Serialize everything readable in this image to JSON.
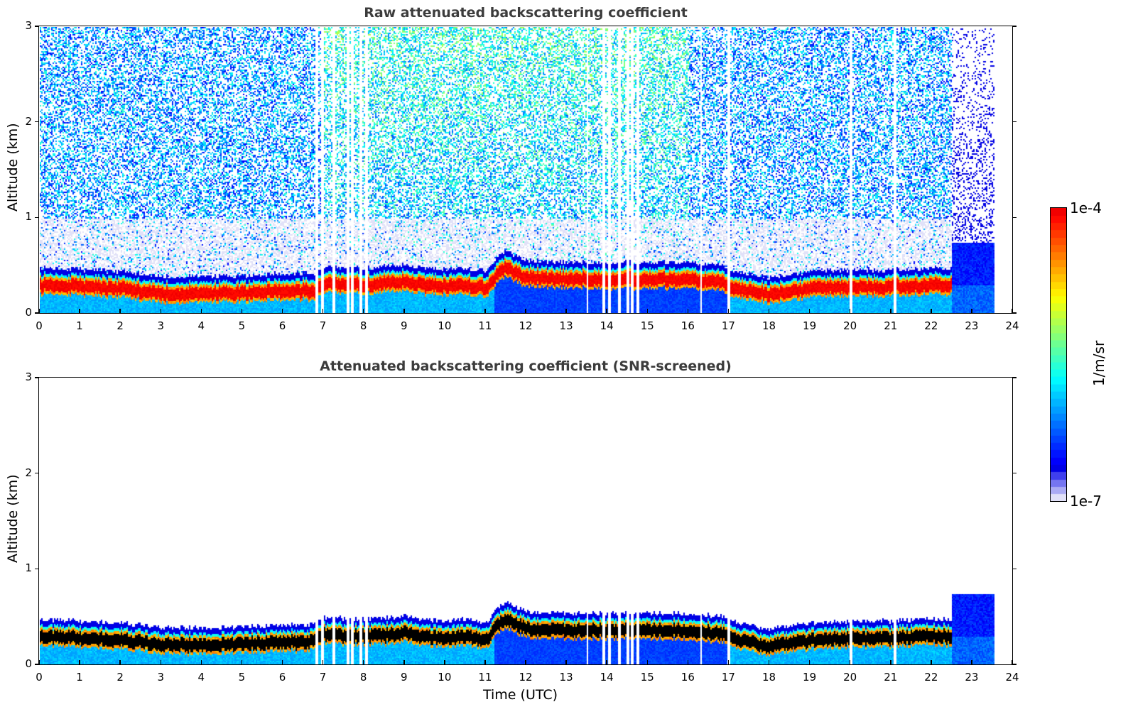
{
  "chart_data": [
    {
      "type": "heatmap",
      "title": "Raw attenuated backscattering coefficient",
      "xlabel": "",
      "ylabel": "Altitude (km)",
      "xlim": [
        0,
        24
      ],
      "ylim": [
        0,
        3
      ],
      "xticks": [
        "0",
        "1",
        "2",
        "3",
        "4",
        "5",
        "6",
        "7",
        "8",
        "9",
        "10",
        "11",
        "12",
        "13",
        "14",
        "15",
        "16",
        "17",
        "18",
        "19",
        "20",
        "21",
        "22",
        "23",
        "24"
      ],
      "yticks": [
        "0",
        "1",
        "2",
        "3"
      ],
      "data_end_time": 23.55,
      "description_series": {
        "layer_top_km": {
          "x": [
            0,
            1,
            2,
            3,
            4,
            5,
            6,
            6.8,
            7,
            8,
            9,
            9.5,
            10,
            10.5,
            11,
            11.3,
            11.5,
            12,
            13,
            14,
            15,
            16,
            16.8,
            17,
            18,
            19,
            20,
            21,
            22,
            22.5
          ],
          "y": [
            0.42,
            0.4,
            0.38,
            0.33,
            0.33,
            0.34,
            0.36,
            0.36,
            0.44,
            0.42,
            0.45,
            0.42,
            0.4,
            0.42,
            0.38,
            0.55,
            0.6,
            0.5,
            0.48,
            0.48,
            0.48,
            0.48,
            0.45,
            0.4,
            0.32,
            0.38,
            0.4,
            0.4,
            0.42,
            0.42
          ]
        }
      },
      "gaps_hours": [
        6.82,
        6.95,
        7.25,
        7.6,
        7.7,
        7.9,
        8.05,
        13.5,
        13.9,
        14.05,
        14.3,
        14.5,
        14.6,
        14.75,
        16.3,
        17.0,
        20.0,
        21.1
      ]
    },
    {
      "type": "heatmap",
      "title": "Attenuated backscattering coefficient (SNR-screened)",
      "xlabel": "Time (UTC)",
      "ylabel": "Altitude (km)",
      "xlim": [
        0,
        24
      ],
      "ylim": [
        0,
        3
      ],
      "xticks": [
        "0",
        "1",
        "2",
        "3",
        "4",
        "5",
        "6",
        "7",
        "8",
        "9",
        "10",
        "11",
        "12",
        "13",
        "14",
        "15",
        "16",
        "17",
        "18",
        "19",
        "20",
        "21",
        "22",
        "23",
        "24"
      ],
      "yticks": [
        "0",
        "1",
        "2",
        "3"
      ],
      "data_end_time": 23.55
    }
  ],
  "colorbar": {
    "label": "1/m/sr",
    "max_label": "1e-4",
    "min_label": "1e-7",
    "scale": "log",
    "range": [
      1e-07,
      0.0001
    ],
    "colormap": "jet"
  }
}
